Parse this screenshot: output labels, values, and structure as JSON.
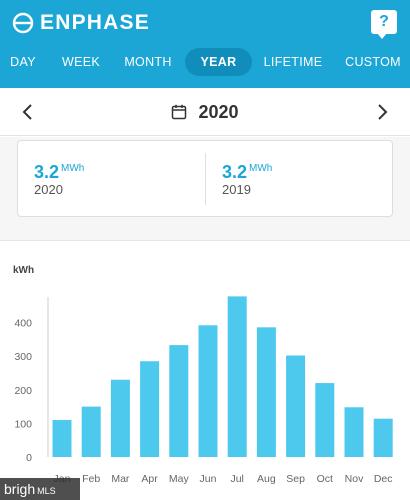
{
  "header": {
    "brand": "ENPHASE",
    "help_label": "?",
    "tabs": [
      {
        "label": "DAY",
        "active": false
      },
      {
        "label": "WEEK",
        "active": false
      },
      {
        "label": "MONTH",
        "active": false
      },
      {
        "label": "YEAR",
        "active": true
      },
      {
        "label": "LIFETIME",
        "active": false
      },
      {
        "label": "CUSTOM",
        "active": false
      }
    ]
  },
  "datebar": {
    "date": "2020"
  },
  "summary": [
    {
      "value": "3.2",
      "unit": "MWh",
      "label": "2020"
    },
    {
      "value": "3.2",
      "unit": "MWh",
      "label": "2019"
    }
  ],
  "chart_data": {
    "type": "bar",
    "ylabel": "kWh",
    "categories": [
      "Jan",
      "Feb",
      "Mar",
      "Apr",
      "May",
      "Jun",
      "Jul",
      "Aug",
      "Sep",
      "Oct",
      "Nov",
      "Dec"
    ],
    "values": [
      110,
      150,
      230,
      285,
      333,
      392,
      478,
      386,
      302,
      220,
      148,
      114
    ],
    "yticks": [
      0,
      100,
      200,
      300,
      400
    ],
    "ylim": [
      0,
      500
    ],
    "grid": false,
    "bar_color": "#4dc9ee"
  },
  "colors": {
    "brand": "#1ba6d6",
    "tab_active": "#118dbb",
    "bar": "#4dc9ee"
  },
  "watermark": {
    "text": "brigh",
    "suffix": "MLS"
  }
}
